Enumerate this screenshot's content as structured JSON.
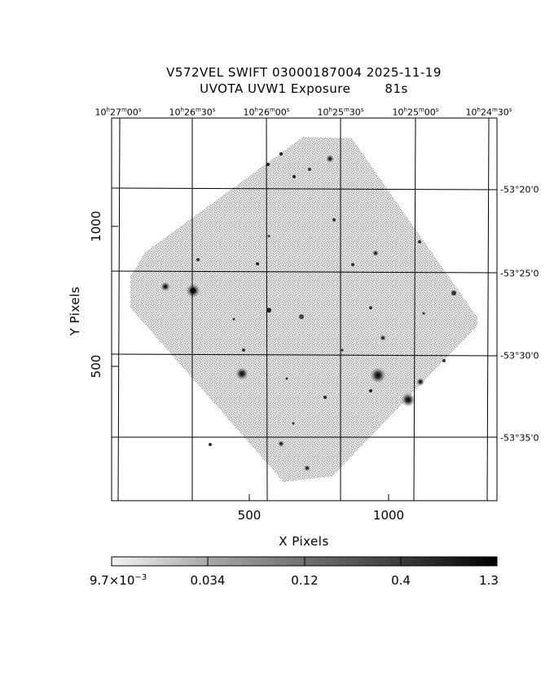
{
  "title": {
    "line1": "V572VEL SWIFT 03000187004 2025-11-19",
    "line2": "UVOTA UVW1 Exposure        81s"
  },
  "ra_ticks": [
    {
      "h": "10",
      "m": "27",
      "s": "00"
    },
    {
      "h": "10",
      "m": "26",
      "s": "30"
    },
    {
      "h": "10",
      "m": "26",
      "s": "00"
    },
    {
      "h": "10",
      "m": "25",
      "s": "30"
    },
    {
      "h": "10",
      "m": "25",
      "s": "00"
    },
    {
      "h": "10",
      "m": "24",
      "s": "30"
    }
  ],
  "dec_ticks": [
    {
      "label": "-53°20'0"
    },
    {
      "label": "-53°25'0"
    },
    {
      "label": "-53°30'0"
    },
    {
      "label": "-53°35'0"
    }
  ],
  "x_axis": {
    "label": "X Pixels",
    "ticks": [
      "500",
      "1000"
    ]
  },
  "y_axis": {
    "label": "Y Pixels",
    "ticks": [
      "1000",
      "500"
    ]
  },
  "colorbar": {
    "labels": [
      {
        "mantissa": "9.7×10",
        "exp": "−3"
      },
      {
        "mantissa": "0.034",
        "exp": ""
      },
      {
        "mantissa": "0.12",
        "exp": ""
      },
      {
        "mantissa": "0.4",
        "exp": ""
      },
      {
        "mantissa": "1.3",
        "exp": ""
      }
    ]
  }
}
